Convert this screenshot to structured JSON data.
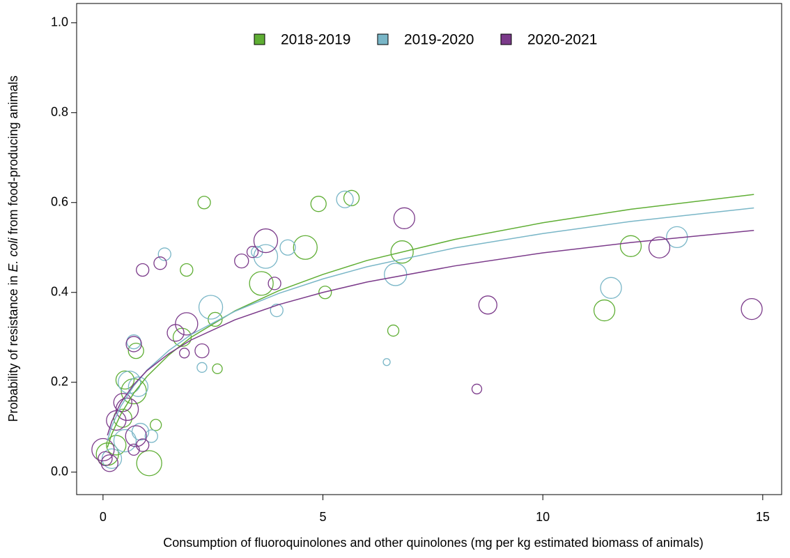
{
  "chart_data": {
    "type": "scatter",
    "xlabel": "Consumption of fluoroquinolones and other quinolones (mg per kg estimated biomass of animals)",
    "ylabel": [
      "Probability of resistance in ",
      "E. coli",
      "  from food-producing animals"
    ],
    "xlim": [
      -0.6,
      15.43
    ],
    "ylim": [
      -0.05,
      1.043
    ],
    "xticks": [
      0,
      5,
      10,
      15
    ],
    "yticks": [
      {
        "value": 0,
        "label": "0.0"
      },
      0.2,
      0.4,
      0.6,
      0.8,
      {
        "value": 1,
        "label": "1.0"
      }
    ],
    "legend": "top",
    "curve_x": [
      0.1,
      0.2,
      0.4,
      0.7,
      1,
      1.5,
      2,
      3,
      4,
      5,
      6,
      8,
      10,
      12,
      14.8
    ],
    "series": [
      {
        "name": "2018-2019",
        "color": "#5fae34",
        "x": [
          2.3,
          4.9,
          5.65,
          4.6,
          6.8,
          1.9,
          3.6,
          5.05,
          2.55,
          1.8,
          0.75,
          2.6,
          6.6,
          11.4,
          12.0,
          0.5,
          0.7,
          1.2,
          1.05,
          0.1,
          0.3,
          0.45
        ],
        "y": [
          0.6,
          0.597,
          0.61,
          0.5,
          0.49,
          0.45,
          0.42,
          0.4,
          0.34,
          0.3,
          0.27,
          0.23,
          0.315,
          0.36,
          0.503,
          0.205,
          0.18,
          0.105,
          0.02,
          0.04,
          0.06,
          0.12
        ],
        "sizes": [
          9,
          11,
          11,
          17,
          16,
          9,
          17,
          9,
          10,
          13,
          11,
          7,
          8,
          15,
          15,
          13,
          18,
          8,
          18,
          16,
          14,
          13
        ],
        "curve": [
          0.055,
          0.085,
          0.128,
          0.176,
          0.213,
          0.261,
          0.3,
          0.359,
          0.404,
          0.44,
          0.471,
          0.518,
          0.555,
          0.585,
          0.618
        ]
      },
      {
        "name": "2019-2020",
        "color": "#79b6c7",
        "x": [
          5.5,
          1.4,
          3.7,
          4.2,
          3.5,
          2.45,
          3.95,
          6.65,
          11.55,
          13.05,
          2.25,
          6.45,
          0.7,
          0.6,
          0.8,
          1.1,
          0.2,
          0.5,
          0.85
        ],
        "y": [
          0.607,
          0.485,
          0.48,
          0.5,
          0.49,
          0.367,
          0.36,
          0.44,
          0.41,
          0.523,
          0.233,
          0.245,
          0.29,
          0.2,
          0.19,
          0.08,
          0.03,
          0.07,
          0.09
        ],
        "sizes": [
          12,
          9,
          17,
          11,
          8,
          17,
          9,
          16,
          15,
          15,
          7,
          5,
          10,
          16,
          14,
          9,
          14,
          16,
          12
        ],
        "curve": [
          0.07,
          0.102,
          0.146,
          0.192,
          0.227,
          0.271,
          0.306,
          0.358,
          0.398,
          0.43,
          0.457,
          0.499,
          0.531,
          0.558,
          0.588
        ]
      },
      {
        "name": "2020-2021",
        "color": "#7b3a8a",
        "x": [
          6.85,
          3.7,
          3.15,
          3.4,
          0.9,
          1.3,
          3.9,
          1.9,
          1.65,
          2.25,
          1.85,
          0.7,
          8.75,
          8.5,
          12.65,
          14.75,
          0.45,
          0.55,
          0.3,
          0.75,
          0.0,
          0.15,
          0.9,
          0.7,
          0.05
        ],
        "y": [
          0.565,
          0.515,
          0.47,
          0.49,
          0.45,
          0.465,
          0.42,
          0.33,
          0.31,
          0.27,
          0.265,
          0.285,
          0.372,
          0.185,
          0.5,
          0.363,
          0.155,
          0.14,
          0.115,
          0.08,
          0.05,
          0.02,
          0.06,
          0.05,
          0.03
        ],
        "sizes": [
          15,
          17,
          10,
          8,
          9,
          9,
          9,
          16,
          12,
          10,
          7,
          11,
          13,
          7,
          15,
          15,
          13,
          16,
          14,
          15,
          16,
          12,
          9,
          8,
          10
        ],
        "curve": [
          0.082,
          0.113,
          0.154,
          0.195,
          0.226,
          0.264,
          0.294,
          0.339,
          0.373,
          0.4,
          0.423,
          0.459,
          0.488,
          0.511,
          0.538
        ]
      }
    ]
  }
}
